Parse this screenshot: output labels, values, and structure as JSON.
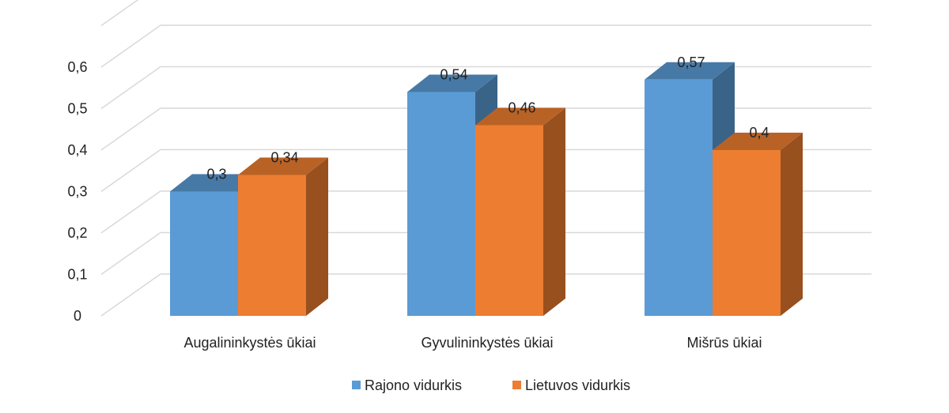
{
  "chart_data": {
    "type": "bar",
    "three_d": true,
    "categories": [
      "Augalininkystės ūkiai",
      "Gyvulininkystės ūkiai",
      "Mišrūs ūkiai"
    ],
    "series": [
      {
        "name": "Rajono vidurkis",
        "values": [
          0.3,
          0.54,
          0.57
        ],
        "labels": [
          "0,3",
          "0,54",
          "0,57"
        ],
        "color": "#5B9BD5"
      },
      {
        "name": "Lietuvos vidurkis",
        "values": [
          0.34,
          0.46,
          0.4
        ],
        "labels": [
          "0,34",
          "0,46",
          "0,4"
        ],
        "color": "#ED7D31"
      }
    ],
    "y_ticks": [
      0,
      0.1,
      0.2,
      0.3,
      0.4,
      0.5,
      0.6
    ],
    "y_tick_labels": [
      "0",
      "0,1",
      "0,2",
      "0,3",
      "0,4",
      "0,5",
      "0,6"
    ],
    "ylim": [
      0,
      0.7
    ],
    "grid": true,
    "legend_position": "bottom",
    "title": "",
    "xlabel": "",
    "ylabel": ""
  }
}
